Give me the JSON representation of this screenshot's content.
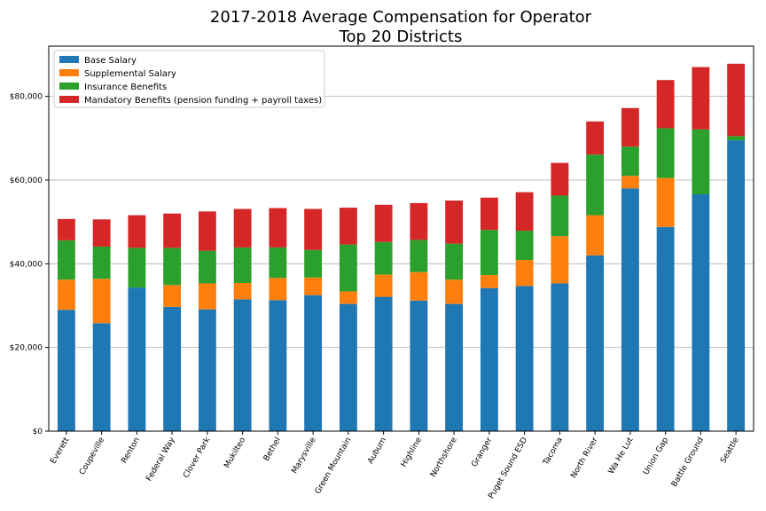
{
  "chart_data": {
    "type": "bar",
    "stacked": true,
    "title": "2017-2018 Average Compensation for Operator",
    "subtitle": "Top 20 Districts",
    "xlabel": "",
    "ylabel": "",
    "ylim": [
      0,
      92000
    ],
    "yticks": [
      0,
      20000,
      40000,
      60000,
      80000
    ],
    "ytick_labels": [
      "$0",
      "$20,000",
      "$40,000",
      "$60,000",
      "$80,000"
    ],
    "grid": "y-major",
    "legend_position": "top-left",
    "categories": [
      "Everett",
      "Coupeville",
      "Renton",
      "Federal Way",
      "Clover Park",
      "Mukilteo",
      "Bethel",
      "Marysville",
      "Green Mountain",
      "Auburn",
      "Highline",
      "Northshore",
      "Granger",
      "Puget Sound ESD",
      "Tacoma",
      "North River",
      "Wa He Lut",
      "Union Gap",
      "Battle Ground",
      "Seattle"
    ],
    "series": [
      {
        "name": "Base Salary",
        "color": "#1f77b4",
        "values": [
          29000,
          25800,
          34300,
          29700,
          29100,
          31500,
          31300,
          32500,
          30400,
          32100,
          31200,
          30400,
          34200,
          34700,
          35300,
          42000,
          58000,
          48800,
          56600,
          69500
        ]
      },
      {
        "name": "Supplemental Salary",
        "color": "#ff7f0e",
        "values": [
          7200,
          10600,
          0,
          5200,
          6200,
          3900,
          5300,
          4200,
          3000,
          5300,
          6800,
          5800,
          3100,
          6200,
          11300,
          9600,
          3000,
          11700,
          0,
          0
        ]
      },
      {
        "name": "Insurance Benefits",
        "color": "#2ca02c",
        "values": [
          9400,
          7700,
          9500,
          8900,
          7800,
          8500,
          7300,
          6600,
          11200,
          7800,
          7700,
          8600,
          10800,
          7000,
          9700,
          14500,
          7000,
          11900,
          15500,
          1000
        ]
      },
      {
        "name": "Mandatory Benefits (pension funding + payroll taxes)",
        "color": "#d62728",
        "values": [
          5100,
          6500,
          7800,
          8200,
          9400,
          9200,
          9400,
          9800,
          8800,
          8900,
          8800,
          10300,
          7700,
          9200,
          7800,
          7900,
          9200,
          11500,
          14900,
          17300
        ]
      }
    ]
  }
}
